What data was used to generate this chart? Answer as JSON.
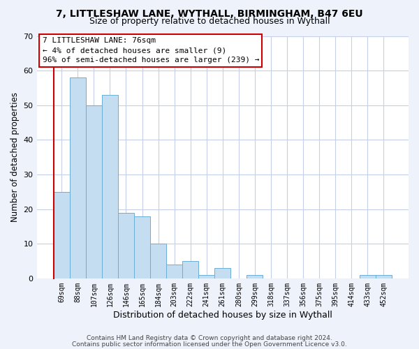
{
  "title1": "7, LITTLESHAW LANE, WYTHALL, BIRMINGHAM, B47 6EU",
  "title2": "Size of property relative to detached houses in Wythall",
  "xlabel": "Distribution of detached houses by size in Wythall",
  "ylabel": "Number of detached properties",
  "bar_color": "#c5ddf0",
  "bar_edge_color": "#6aaed6",
  "categories": [
    "69sqm",
    "88sqm",
    "107sqm",
    "126sqm",
    "146sqm",
    "165sqm",
    "184sqm",
    "203sqm",
    "222sqm",
    "241sqm",
    "261sqm",
    "280sqm",
    "299sqm",
    "318sqm",
    "337sqm",
    "356sqm",
    "375sqm",
    "395sqm",
    "414sqm",
    "433sqm",
    "452sqm"
  ],
  "values": [
    25,
    58,
    50,
    53,
    19,
    18,
    10,
    4,
    5,
    1,
    3,
    0,
    1,
    0,
    0,
    0,
    0,
    0,
    0,
    1,
    1
  ],
  "ylim": [
    0,
    70
  ],
  "yticks": [
    0,
    10,
    20,
    30,
    40,
    50,
    60,
    70
  ],
  "annotation_line1": "7 LITTLESHAW LANE: 76sqm",
  "annotation_line2": "← 4% of detached houses are smaller (9)",
  "annotation_line3": "96% of semi-detached houses are larger (239) →",
  "footer1": "Contains HM Land Registry data © Crown copyright and database right 2024.",
  "footer2": "Contains public sector information licensed under the Open Government Licence v3.0.",
  "bg_color": "#eef2fb",
  "plot_bg_color": "#ffffff",
  "grid_color": "#c5cfe8",
  "red_line_color": "#cc0000",
  "annotation_box_edge": "#cc0000"
}
